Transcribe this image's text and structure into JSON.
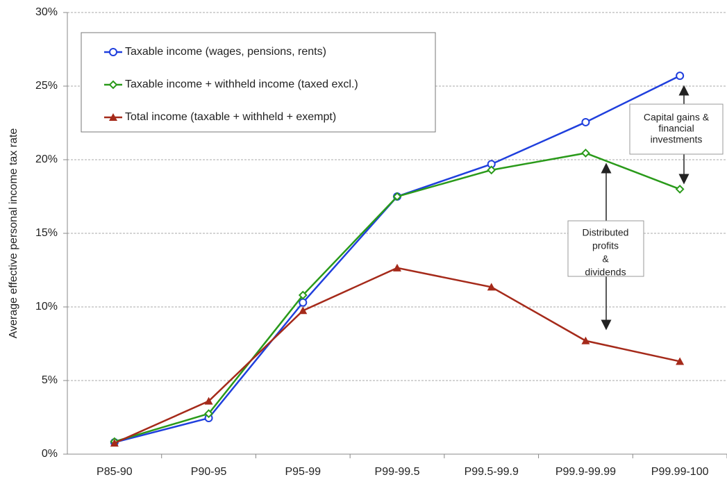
{
  "chart_data": {
    "type": "line",
    "y_label": "Average effective personal income tax rate",
    "categories": [
      "P85-90",
      "P90-95",
      "P95-99",
      "P99-99.5",
      "P99.5-99.9",
      "P99.9-99.99",
      "P99.99-100"
    ],
    "series": [
      {
        "name": "Taxable income (wages, pensions, rents)",
        "color": "#1f3fdd",
        "marker": "circle",
        "values": [
          0.8,
          2.45,
          10.3,
          17.5,
          19.7,
          22.55,
          25.7
        ]
      },
      {
        "name": "Taxable income + withheld income (taxed excl.)",
        "color": "#2a9a1a",
        "marker": "diamond",
        "values": [
          0.85,
          2.75,
          10.8,
          17.5,
          19.3,
          20.45,
          18.0
        ]
      },
      {
        "name": "Total income (taxable + withheld + exempt)",
        "color": "#a52a1a",
        "marker": "triangle",
        "values": [
          0.75,
          3.6,
          9.75,
          12.65,
          11.35,
          7.7,
          6.3
        ]
      }
    ],
    "ylim": [
      0,
      30
    ],
    "yticks": [
      {
        "value": 0,
        "label": "0%"
      },
      {
        "value": 5,
        "label": "5%"
      },
      {
        "value": 10,
        "label": "10%"
      },
      {
        "value": 15,
        "label": "15%"
      },
      {
        "value": 20,
        "label": "20%"
      },
      {
        "value": 25,
        "label": "25%"
      },
      {
        "value": 30,
        "label": "30%"
      }
    ],
    "grid": true,
    "legend": "upper left",
    "annotations": [
      {
        "lines": [
          "Capital gains &",
          "financial",
          "investments"
        ]
      },
      {
        "lines": [
          "Distributed",
          "profits",
          "&",
          "dividends"
        ]
      }
    ]
  }
}
